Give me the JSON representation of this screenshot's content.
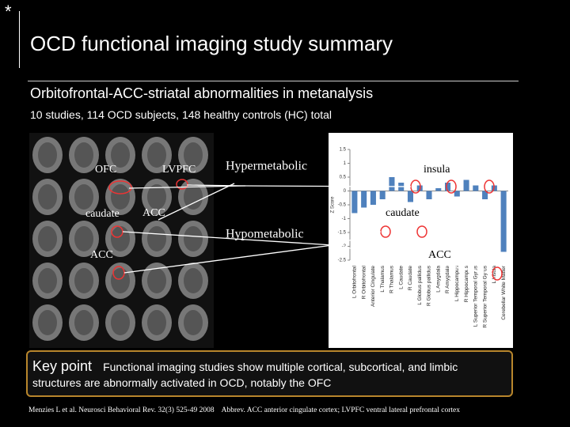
{
  "slide": {
    "bullet": "*",
    "title": "OCD functional imaging study summary",
    "subtitle": "Orbitofrontal-ACC-striatal abnormalities in metanalysis",
    "study_info": "10 studies, 114 OCD subjects, 148 healthy controls (HC) total",
    "brain_labels": [
      "OFC",
      "LVPFC",
      "caudate",
      "ACC",
      "ACC"
    ],
    "hyper_label": "Hypermetabolic",
    "hypo_label": "Hypometabolic",
    "chart_labels": [
      "insula",
      "caudate",
      "ACC"
    ],
    "key_point": {
      "heading": "Key point",
      "text": "Functional imaging studies show multiple cortical, subcortical, and limbic structures are abnormally activated in OCD, notably the OFC"
    },
    "citation": "Menzies L et al. Neurosci Behavioral Rev. 32(3) 525-49 2008",
    "abbreviations": "Abbrev. ACC anterior cingulate cortex; LVPFC ventral lateral prefrontal cortex"
  },
  "chart_data": {
    "type": "bar",
    "y_label": "Z Score",
    "categories": [
      "L Orbitofrontal",
      "R Orbitofrontal",
      "Anterior Cingulate",
      "L Thalamus",
      "R Thalamus",
      "L Caudate",
      "R Caudate",
      "L Globus pallidus",
      "R Globus pallidus",
      "L Amygdala",
      "R Amygdala",
      "L Hippocampus",
      "R Hippocampus",
      "L Superior Temporal Gyrus",
      "R Superior Temporal Gyrus",
      "L Insula",
      "Cerebellar White Matter"
    ],
    "values": [
      -0.8,
      -0.6,
      -0.5,
      -0.3,
      0.5,
      0.3,
      -0.4,
      0.2,
      -0.3,
      0.1,
      0.3,
      -0.2,
      0.4,
      0.2,
      -0.3,
      0.2,
      -2.2
    ],
    "color": "#4f81bd",
    "ylim": [
      -2.5,
      1.5
    ],
    "yticks": [
      -2.5,
      -2,
      -1.5,
      -1,
      -0.5,
      0,
      0.5,
      1,
      1.5
    ],
    "grid": false
  }
}
